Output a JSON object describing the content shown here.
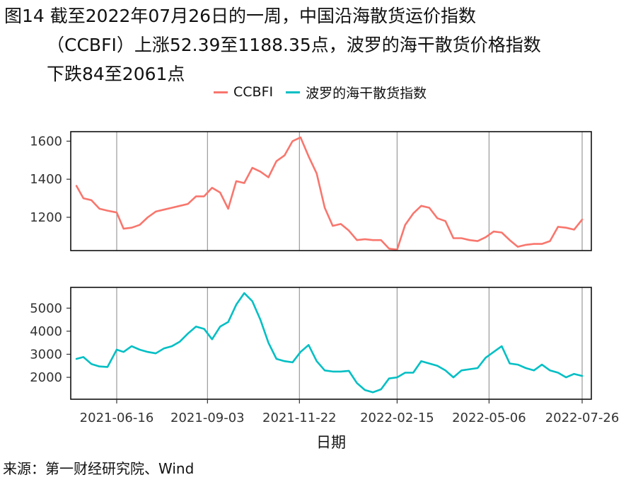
{
  "title": {
    "line1": "图14  截至2022年07月26日的一周，中国沿海散货运价指数",
    "line2": "（CCBFI）上涨52.39至1188.35点，波罗的海干散货价格指数",
    "line3": "下跌84至2061点"
  },
  "source": "来源：第一财经研究院、Wind",
  "chart_data": {
    "type": "line",
    "xlabel": "日期",
    "x_tick_labels": [
      "2021-06-16",
      "2021-09-03",
      "2021-11-22",
      "2022-02-15",
      "2022-05-06",
      "2022-07-26"
    ],
    "grid": "vertical lines at x ticks",
    "legend_position": "top",
    "panels": [
      {
        "series_name": "CCBFI",
        "color": "#F8766D",
        "ylim": [
          1025,
          1650
        ],
        "y_ticks": [
          1200,
          1400,
          1600
        ],
        "x": [
          "2021-05-12",
          "2021-05-18",
          "2021-05-25",
          "2021-06-01",
          "2021-06-08",
          "2021-06-16",
          "2021-06-22",
          "2021-06-29",
          "2021-07-06",
          "2021-07-13",
          "2021-07-20",
          "2021-07-27",
          "2021-08-03",
          "2021-08-10",
          "2021-08-17",
          "2021-08-24",
          "2021-08-31",
          "2021-09-07",
          "2021-09-14",
          "2021-09-21",
          "2021-09-28",
          "2021-10-05",
          "2021-10-12",
          "2021-10-19",
          "2021-10-26",
          "2021-11-02",
          "2021-11-09",
          "2021-11-16",
          "2021-11-23",
          "2021-11-30",
          "2021-12-07",
          "2021-12-14",
          "2021-12-21",
          "2021-12-28",
          "2022-01-04",
          "2022-01-11",
          "2022-01-18",
          "2022-01-25",
          "2022-02-01",
          "2022-02-08",
          "2022-02-15",
          "2022-02-22",
          "2022-03-01",
          "2022-03-08",
          "2022-03-15",
          "2022-03-22",
          "2022-03-29",
          "2022-04-05",
          "2022-04-12",
          "2022-04-19",
          "2022-04-26",
          "2022-05-03",
          "2022-05-10",
          "2022-05-17",
          "2022-05-24",
          "2022-05-31",
          "2022-06-07",
          "2022-06-14",
          "2022-06-21",
          "2022-06-28",
          "2022-07-05",
          "2022-07-12",
          "2022-07-19",
          "2022-07-26"
        ],
        "values": [
          1365,
          1300,
          1290,
          1245,
          1235,
          1225,
          1140,
          1145,
          1160,
          1200,
          1230,
          1240,
          1250,
          1260,
          1270,
          1310,
          1310,
          1355,
          1330,
          1245,
          1390,
          1380,
          1460,
          1440,
          1410,
          1495,
          1525,
          1600,
          1620,
          1520,
          1430,
          1250,
          1155,
          1165,
          1130,
          1080,
          1085,
          1080,
          1080,
          1035,
          1030,
          1160,
          1220,
          1260,
          1250,
          1195,
          1180,
          1090,
          1090,
          1080,
          1075,
          1095,
          1125,
          1120,
          1080,
          1045,
          1055,
          1060,
          1060,
          1075,
          1150,
          1145,
          1135,
          1188
        ]
      },
      {
        "series_name": "波罗的海干散货指数",
        "color": "#00BFC4",
        "ylim": [
          1050,
          5900
        ],
        "y_ticks": [
          2000,
          3000,
          4000,
          5000
        ],
        "x": [
          "2021-05-12",
          "2021-05-18",
          "2021-05-25",
          "2021-06-01",
          "2021-06-08",
          "2021-06-16",
          "2021-06-22",
          "2021-06-29",
          "2021-07-06",
          "2021-07-13",
          "2021-07-20",
          "2021-07-27",
          "2021-08-03",
          "2021-08-10",
          "2021-08-17",
          "2021-08-24",
          "2021-08-31",
          "2021-09-07",
          "2021-09-14",
          "2021-09-21",
          "2021-09-28",
          "2021-10-05",
          "2021-10-12",
          "2021-10-19",
          "2021-10-26",
          "2021-11-02",
          "2021-11-09",
          "2021-11-16",
          "2021-11-23",
          "2021-11-30",
          "2021-12-07",
          "2021-12-14",
          "2021-12-21",
          "2021-12-28",
          "2022-01-04",
          "2022-01-11",
          "2022-01-18",
          "2022-01-25",
          "2022-02-01",
          "2022-02-08",
          "2022-02-15",
          "2022-02-22",
          "2022-03-01",
          "2022-03-08",
          "2022-03-15",
          "2022-03-22",
          "2022-03-29",
          "2022-04-05",
          "2022-04-12",
          "2022-04-19",
          "2022-04-26",
          "2022-05-03",
          "2022-05-10",
          "2022-05-17",
          "2022-05-24",
          "2022-05-31",
          "2022-06-07",
          "2022-06-14",
          "2022-06-21",
          "2022-06-28",
          "2022-07-05",
          "2022-07-12",
          "2022-07-19",
          "2022-07-26"
        ],
        "values": [
          2800,
          2880,
          2580,
          2470,
          2450,
          3200,
          3100,
          3350,
          3200,
          3100,
          3040,
          3250,
          3350,
          3550,
          3900,
          4200,
          4100,
          3650,
          4200,
          4400,
          5150,
          5650,
          5300,
          4500,
          3500,
          2800,
          2700,
          2650,
          3100,
          3400,
          2700,
          2300,
          2250,
          2250,
          2280,
          1750,
          1450,
          1350,
          1480,
          1950,
          2000,
          2200,
          2200,
          2700,
          2600,
          2500,
          2300,
          2000,
          2300,
          2350,
          2400,
          2850,
          3100,
          3350,
          2600,
          2550,
          2400,
          2300,
          2550,
          2300,
          2200,
          2000,
          2150,
          2061
        ]
      }
    ]
  }
}
